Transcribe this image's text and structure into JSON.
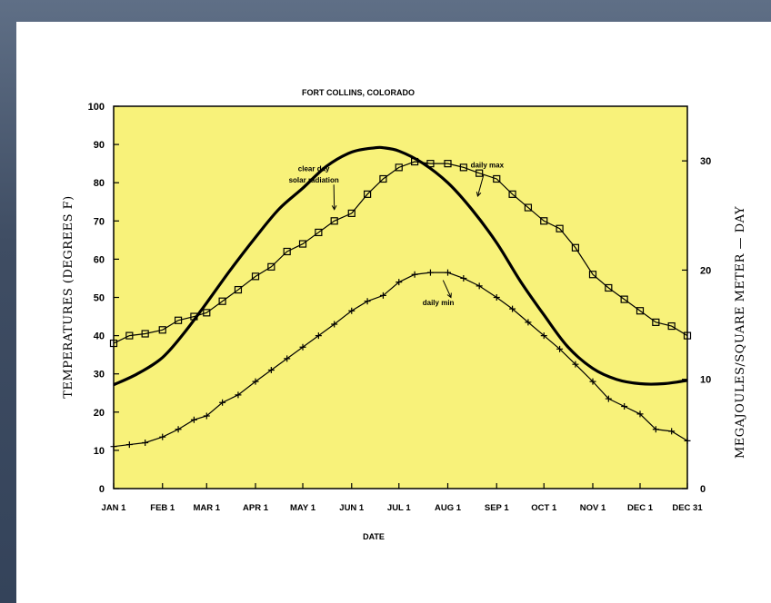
{
  "colors": {
    "plot_background": "#f8f27a",
    "frame": "#000000",
    "slide_background": "#ffffff"
  },
  "chart_data": {
    "type": "line",
    "title": "FORT COLLINS, COLORADO",
    "xlabel": "DATE",
    "ylabel": "TEMPERATURES (DEGREES F)",
    "y2label": "MEGAJOULES/SQUARE METER — DAY",
    "x_tick_labels": [
      "JAN 1",
      "FEB 1",
      "MAR 1",
      "APR 1",
      "MAY 1",
      "JUN 1",
      "JUL 1",
      "AUG 1",
      "SEP 1",
      "OCT 1",
      "NOV 1",
      "DEC 1",
      "DEC 31"
    ],
    "x_tick_days": [
      1,
      32,
      60,
      91,
      121,
      152,
      182,
      213,
      244,
      274,
      305,
      335,
      365
    ],
    "x_unit": "day of year",
    "ylim": [
      0,
      100
    ],
    "y_ticks": [
      0,
      10,
      20,
      30,
      40,
      50,
      60,
      70,
      80,
      90,
      100
    ],
    "y2lim": [
      0,
      35
    ],
    "y2_ticks": [
      0,
      10,
      20,
      30
    ],
    "grid": false,
    "series": [
      {
        "name": "daily max",
        "axis": "left",
        "marker": "square",
        "x": [
          1,
          11,
          21,
          32,
          42,
          52,
          60,
          70,
          80,
          91,
          101,
          111,
          121,
          131,
          141,
          152,
          162,
          172,
          182,
          192,
          202,
          213,
          223,
          233,
          244,
          254,
          264,
          274,
          284,
          294,
          305,
          315,
          325,
          335,
          345,
          355,
          365
        ],
        "y": [
          38,
          40,
          40.5,
          41.5,
          44,
          45,
          46,
          49,
          52,
          55.5,
          58,
          62,
          64,
          67,
          70,
          72,
          77,
          81,
          84,
          85.5,
          85,
          85,
          84,
          82.5,
          81,
          77,
          73.5,
          70,
          68,
          63,
          56,
          52.5,
          49.5,
          46.5,
          43.5,
          42.5,
          40
        ]
      },
      {
        "name": "daily min",
        "axis": "left",
        "marker": "plus",
        "x": [
          1,
          11,
          21,
          32,
          42,
          52,
          60,
          70,
          80,
          91,
          101,
          111,
          121,
          131,
          141,
          152,
          162,
          172,
          182,
          192,
          202,
          213,
          223,
          233,
          244,
          254,
          264,
          274,
          284,
          294,
          305,
          315,
          325,
          335,
          345,
          355,
          365
        ],
        "y": [
          11,
          11.5,
          12,
          13.5,
          15.5,
          18,
          19,
          22.5,
          24.5,
          28,
          31,
          34,
          37,
          40,
          43,
          46.5,
          49,
          50.5,
          54,
          56,
          56.5,
          56.5,
          55,
          53,
          50,
          47,
          43.5,
          40,
          36.5,
          32.5,
          28,
          23.5,
          21.5,
          19.5,
          15.5,
          15,
          12.5
        ]
      },
      {
        "name": "clear day solar radiation",
        "axis": "right",
        "marker": "none",
        "x": [
          1,
          16,
          32,
          46,
          60,
          75,
          91,
          106,
          121,
          136,
          152,
          167,
          172,
          182,
          197,
          213,
          228,
          244,
          259,
          274,
          289,
          305,
          320,
          335,
          350,
          365
        ],
        "y": [
          9.5,
          10.5,
          12,
          14.3,
          17,
          20,
          23,
          25.6,
          27.5,
          29.5,
          30.8,
          31.2,
          31.2,
          30.9,
          29.8,
          28,
          25.6,
          22.5,
          19,
          15.9,
          13,
          11,
          10,
          9.6,
          9.6,
          9.9
        ]
      }
    ],
    "annotations": [
      {
        "text": "clear day",
        "target": "clear day solar radiation",
        "x": 128,
        "y": 83
      },
      {
        "text": "solar radiation",
        "target": "clear day solar radiation",
        "x": 128,
        "y": 80
      },
      {
        "text": "daily max",
        "target": "daily max",
        "x": 238,
        "y": 84
      },
      {
        "text": "daily min",
        "target": "daily min",
        "x": 207,
        "y": 48
      }
    ]
  }
}
